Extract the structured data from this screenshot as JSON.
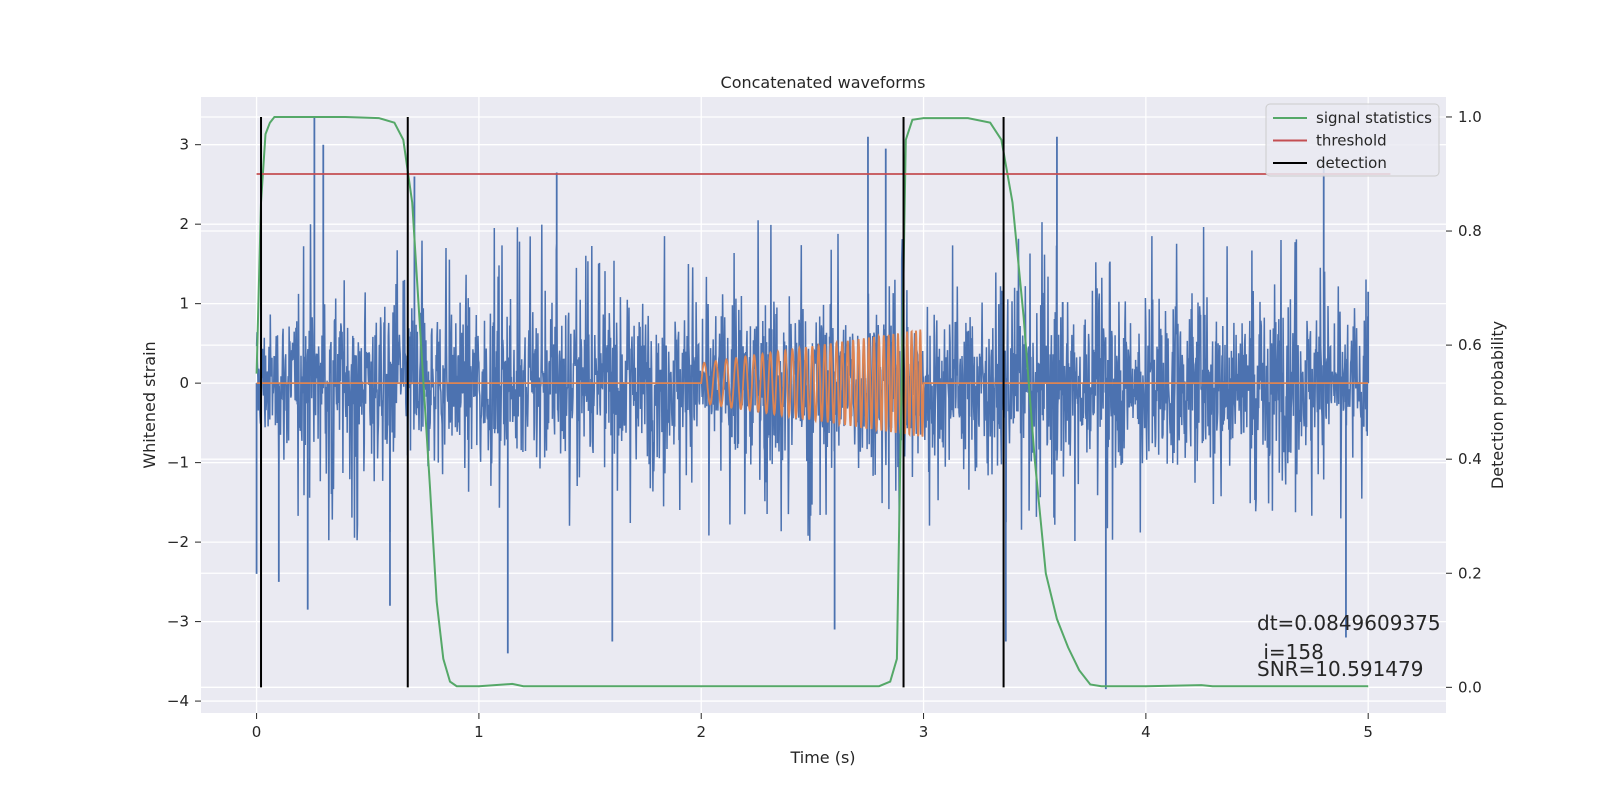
{
  "chart_data": {
    "type": "line",
    "title": "Concatenated waveforms",
    "xlabel": "Time (s)",
    "ylabel": "Whitened strain",
    "y2label": "Detection probability",
    "xlim": [
      -0.25,
      5.35
    ],
    "ylim": [
      -4.15,
      3.6
    ],
    "y2lim": [
      -0.045,
      1.035
    ],
    "xticks": [
      0,
      1,
      2,
      3,
      4,
      5
    ],
    "yticks": [
      -4,
      -3,
      -2,
      -1,
      0,
      1,
      2,
      3
    ],
    "y2ticks": [
      0.0,
      0.2,
      0.4,
      0.6,
      0.8,
      1.0
    ],
    "grid": true,
    "legend_position": "top-right",
    "colors": {
      "background": "#eaeaf2",
      "strain": "#4c72b0",
      "injection": "#dd8452",
      "signal_statistics": "#55a868",
      "threshold": "#c44e52",
      "detection": "#000000"
    },
    "series": [
      {
        "name": "",
        "role": "whitened strain (noise + signal)",
        "x_range": [
          0,
          5
        ],
        "envelope_upper": [
          1.1,
          1.8,
          1.9,
          1.6,
          1.7,
          1.8,
          1.5,
          1.7,
          1.6,
          1.9,
          1.8,
          1.5,
          1.7,
          1.6,
          1.8,
          1.7,
          1.6,
          1.9,
          1.7,
          1.6,
          1.4
        ],
        "envelope_lower": [
          -1.1,
          -1.7,
          -1.8,
          -1.6,
          -1.7,
          -1.6,
          -1.8,
          -1.5,
          -1.7,
          -1.6,
          -1.8,
          -1.7,
          -1.6,
          -1.7,
          -1.6,
          -1.8,
          -1.7,
          -1.6,
          -1.5,
          -1.7,
          -1.3
        ],
        "spikes": [
          [
            0.0,
            -2.4
          ],
          [
            0.1,
            -2.5
          ],
          [
            0.23,
            -2.85
          ],
          [
            0.26,
            3.35
          ],
          [
            0.3,
            3.0
          ],
          [
            0.6,
            -2.8
          ],
          [
            0.71,
            2.6
          ],
          [
            1.13,
            -3.4
          ],
          [
            1.35,
            2.65
          ],
          [
            1.6,
            -3.25
          ],
          [
            2.6,
            -3.1
          ],
          [
            2.75,
            3.1
          ],
          [
            2.83,
            2.95
          ],
          [
            3.37,
            -3.25
          ],
          [
            3.6,
            3.1
          ],
          [
            3.82,
            -3.85
          ],
          [
            4.8,
            2.8
          ],
          [
            4.9,
            -3.2
          ],
          [
            5.0,
            1.15
          ]
        ]
      },
      {
        "name": "",
        "role": "injected chirp",
        "x": [
          0,
          2,
          3,
          5
        ],
        "y": [
          0,
          0,
          0,
          0
        ],
        "chirp": {
          "t_start": 2.0,
          "t_end": 3.0,
          "amp_start": 0.25,
          "amp_end": 0.68,
          "freq_start": 18,
          "freq_end": 52
        }
      },
      {
        "name": "signal statistics",
        "axis": "right",
        "x": [
          0.0,
          0.02,
          0.04,
          0.06,
          0.08,
          0.1,
          0.2,
          0.4,
          0.55,
          0.62,
          0.66,
          0.7,
          0.74,
          0.78,
          0.81,
          0.84,
          0.87,
          0.9,
          1.0,
          1.15,
          1.2,
          2.0,
          2.8,
          2.85,
          2.88,
          2.9,
          2.92,
          2.95,
          3.0,
          3.2,
          3.3,
          3.35,
          3.4,
          3.45,
          3.5,
          3.55,
          3.6,
          3.65,
          3.7,
          3.75,
          3.8,
          4.0,
          4.25,
          4.3,
          5.0
        ],
        "y": [
          0.55,
          0.85,
          0.97,
          0.99,
          1.0,
          1.0,
          1.0,
          1.0,
          0.998,
          0.99,
          0.96,
          0.85,
          0.6,
          0.35,
          0.15,
          0.05,
          0.01,
          0.002,
          0.002,
          0.006,
          0.002,
          0.002,
          0.002,
          0.01,
          0.05,
          0.5,
          0.96,
          0.995,
          0.998,
          0.998,
          0.99,
          0.96,
          0.85,
          0.65,
          0.4,
          0.2,
          0.12,
          0.07,
          0.03,
          0.005,
          0.002,
          0.002,
          0.004,
          0.002,
          0.002
        ]
      },
      {
        "name": "threshold",
        "axis": "right",
        "x": [
          0.0,
          5.1
        ],
        "y": [
          0.9,
          0.9
        ]
      },
      {
        "name": "detection",
        "axis": "right",
        "type": "vlines",
        "x": [
          0.02,
          0.68,
          2.91,
          3.36
        ],
        "y_range": [
          0.0,
          1.0
        ]
      }
    ],
    "annotation": {
      "lines": [
        "dt=0.0849609375",
        " i=158",
        "SNR=10.591479"
      ],
      "x": 4.5,
      "y_axis2": 0.06
    }
  }
}
